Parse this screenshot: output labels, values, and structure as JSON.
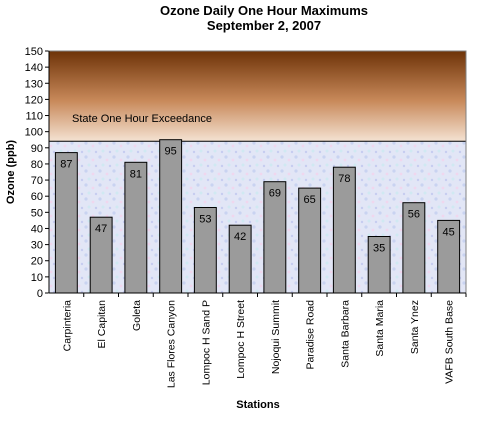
{
  "chart_data": {
    "type": "bar",
    "title": "Ozone Daily One Hour Maximums",
    "subtitle": "September 2, 2007",
    "xlabel": "Stations",
    "ylabel": "Ozone (ppb)",
    "ylim": [
      0,
      150
    ],
    "ytick_step": 10,
    "categories": [
      "Carpinteria",
      "El Capitan",
      "Goleta",
      "Las Flores Canyon",
      "Lompoc H Sand P",
      "Lompoc H Street",
      "Nojoqui Summit",
      "Paradise Road",
      "Santa Barbara",
      "Santa Maria",
      "Santa Ynez",
      "VAFB South Base"
    ],
    "values": [
      87,
      47,
      81,
      95,
      53,
      42,
      69,
      65,
      78,
      35,
      56,
      45
    ],
    "threshold": {
      "label": "State One Hour Exceedance",
      "value": 94
    },
    "colors": {
      "bar": "#9b9b9b",
      "bar_edge": "#000000",
      "exceedance_top": "#6e3308",
      "exceedance_bottom": "#f4e2d2",
      "plot_bg": "#dfe4f5"
    }
  }
}
